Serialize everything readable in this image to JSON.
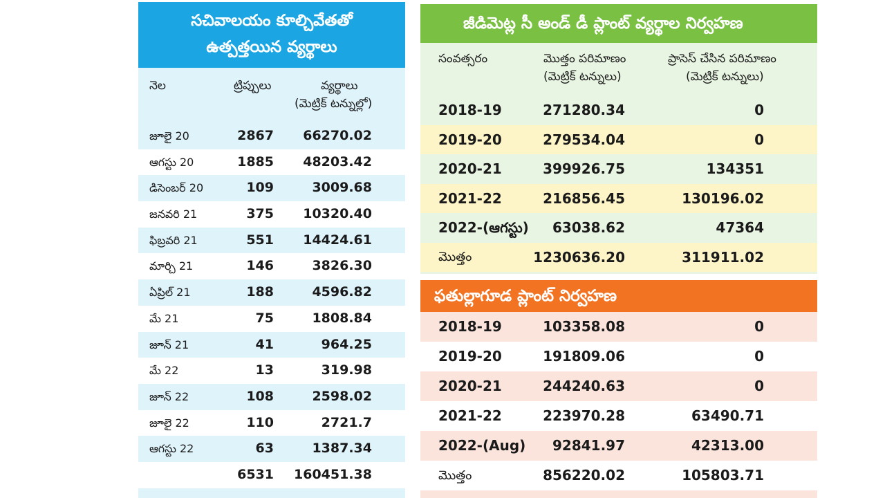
{
  "left": {
    "title_line1": "సచివాలయం కూల్చివేతతో",
    "title_line2": "ఉత్పత్తయిన వ్యర్థాలు",
    "col_month": "నెల",
    "col_trips": "ట్రిప్పులు",
    "col_waste": "వ్యర్థాలు",
    "col_waste_unit": "(మెట్రిక్ టన్నుల్లో)",
    "rows": [
      {
        "month": "జూలై 20",
        "trips": "2867",
        "waste": "66270.02"
      },
      {
        "month": "ఆగస్టు 20",
        "trips": "1885",
        "waste": "48203.42"
      },
      {
        "month": "డిసెంబర్ 20",
        "trips": "109",
        "waste": "3009.68"
      },
      {
        "month": "జనవరి 21",
        "trips": "375",
        "waste": "10320.40"
      },
      {
        "month": "ఫిబ్రవరి 21",
        "trips": "551",
        "waste": "14424.61"
      },
      {
        "month": "మార్చి 21",
        "trips": "146",
        "waste": "3826.30"
      },
      {
        "month": "ఏప్రిల్ 21",
        "trips": "188",
        "waste": "4596.82"
      },
      {
        "month": "మే 21",
        "trips": "75",
        "waste": "1808.84"
      },
      {
        "month": "జూన్ 21",
        "trips": "41",
        "waste": "964.25"
      },
      {
        "month": "మే 22",
        "trips": "13",
        "waste": "319.98"
      },
      {
        "month": "జూన్ 22",
        "trips": "108",
        "waste": "2598.02"
      },
      {
        "month": "జూలై 22",
        "trips": "110",
        "waste": "2721.7"
      },
      {
        "month": "ఆగస్టు 22",
        "trips": "63",
        "waste": "1387.34"
      },
      {
        "month": "",
        "trips": "6531",
        "waste": "160451.38"
      }
    ]
  },
  "jeedimetla": {
    "title": "జీడిమెట్ల సీ అండ్ డీ ప్లాంట్ వ్యర్థాల నిర్వహణ",
    "col_year": "సంవత్సరం",
    "col_total": "మొత్తం పరిమాణం",
    "col_total_unit": "(మెట్రిక్ టన్నులు)",
    "col_processed": "ప్రాసెస్ చేసిన పరిమాణం",
    "col_processed_unit": "(మెట్రిక్ టన్నులు)",
    "rows": [
      {
        "year": "2018-19",
        "total": "271280.34",
        "processed": "0"
      },
      {
        "year": "2019-20",
        "total": "279534.04",
        "processed": "0"
      },
      {
        "year": "2020-21",
        "total": "399926.75",
        "processed": "134351"
      },
      {
        "year": "2021-22",
        "total": "216856.45",
        "processed": "130196.02"
      },
      {
        "year": "2022-(ఆగస్టు)",
        "total": "63038.62",
        "processed": "47364"
      },
      {
        "year": "మొత్తం",
        "total": "1230636.20",
        "processed": "311911.02"
      }
    ]
  },
  "fathullaguda": {
    "title": "ఫతుల్లాగూడ ప్లాంట్ నిర్వహణ",
    "rows": [
      {
        "year": "2018-19",
        "total": "103358.08",
        "processed": "0"
      },
      {
        "year": "2019-20",
        "total": "191809.06",
        "processed": "0"
      },
      {
        "year": "2020-21",
        "total": "244240.63",
        "processed": "0"
      },
      {
        "year": "2021-22",
        "total": "223970.28",
        "processed": "63490.71"
      },
      {
        "year": "2022-(Aug)",
        "total": "92841.97",
        "processed": "42313.00"
      },
      {
        "year": "మొత్తం",
        "total": "856220.02",
        "processed": "105803.71"
      }
    ]
  }
}
